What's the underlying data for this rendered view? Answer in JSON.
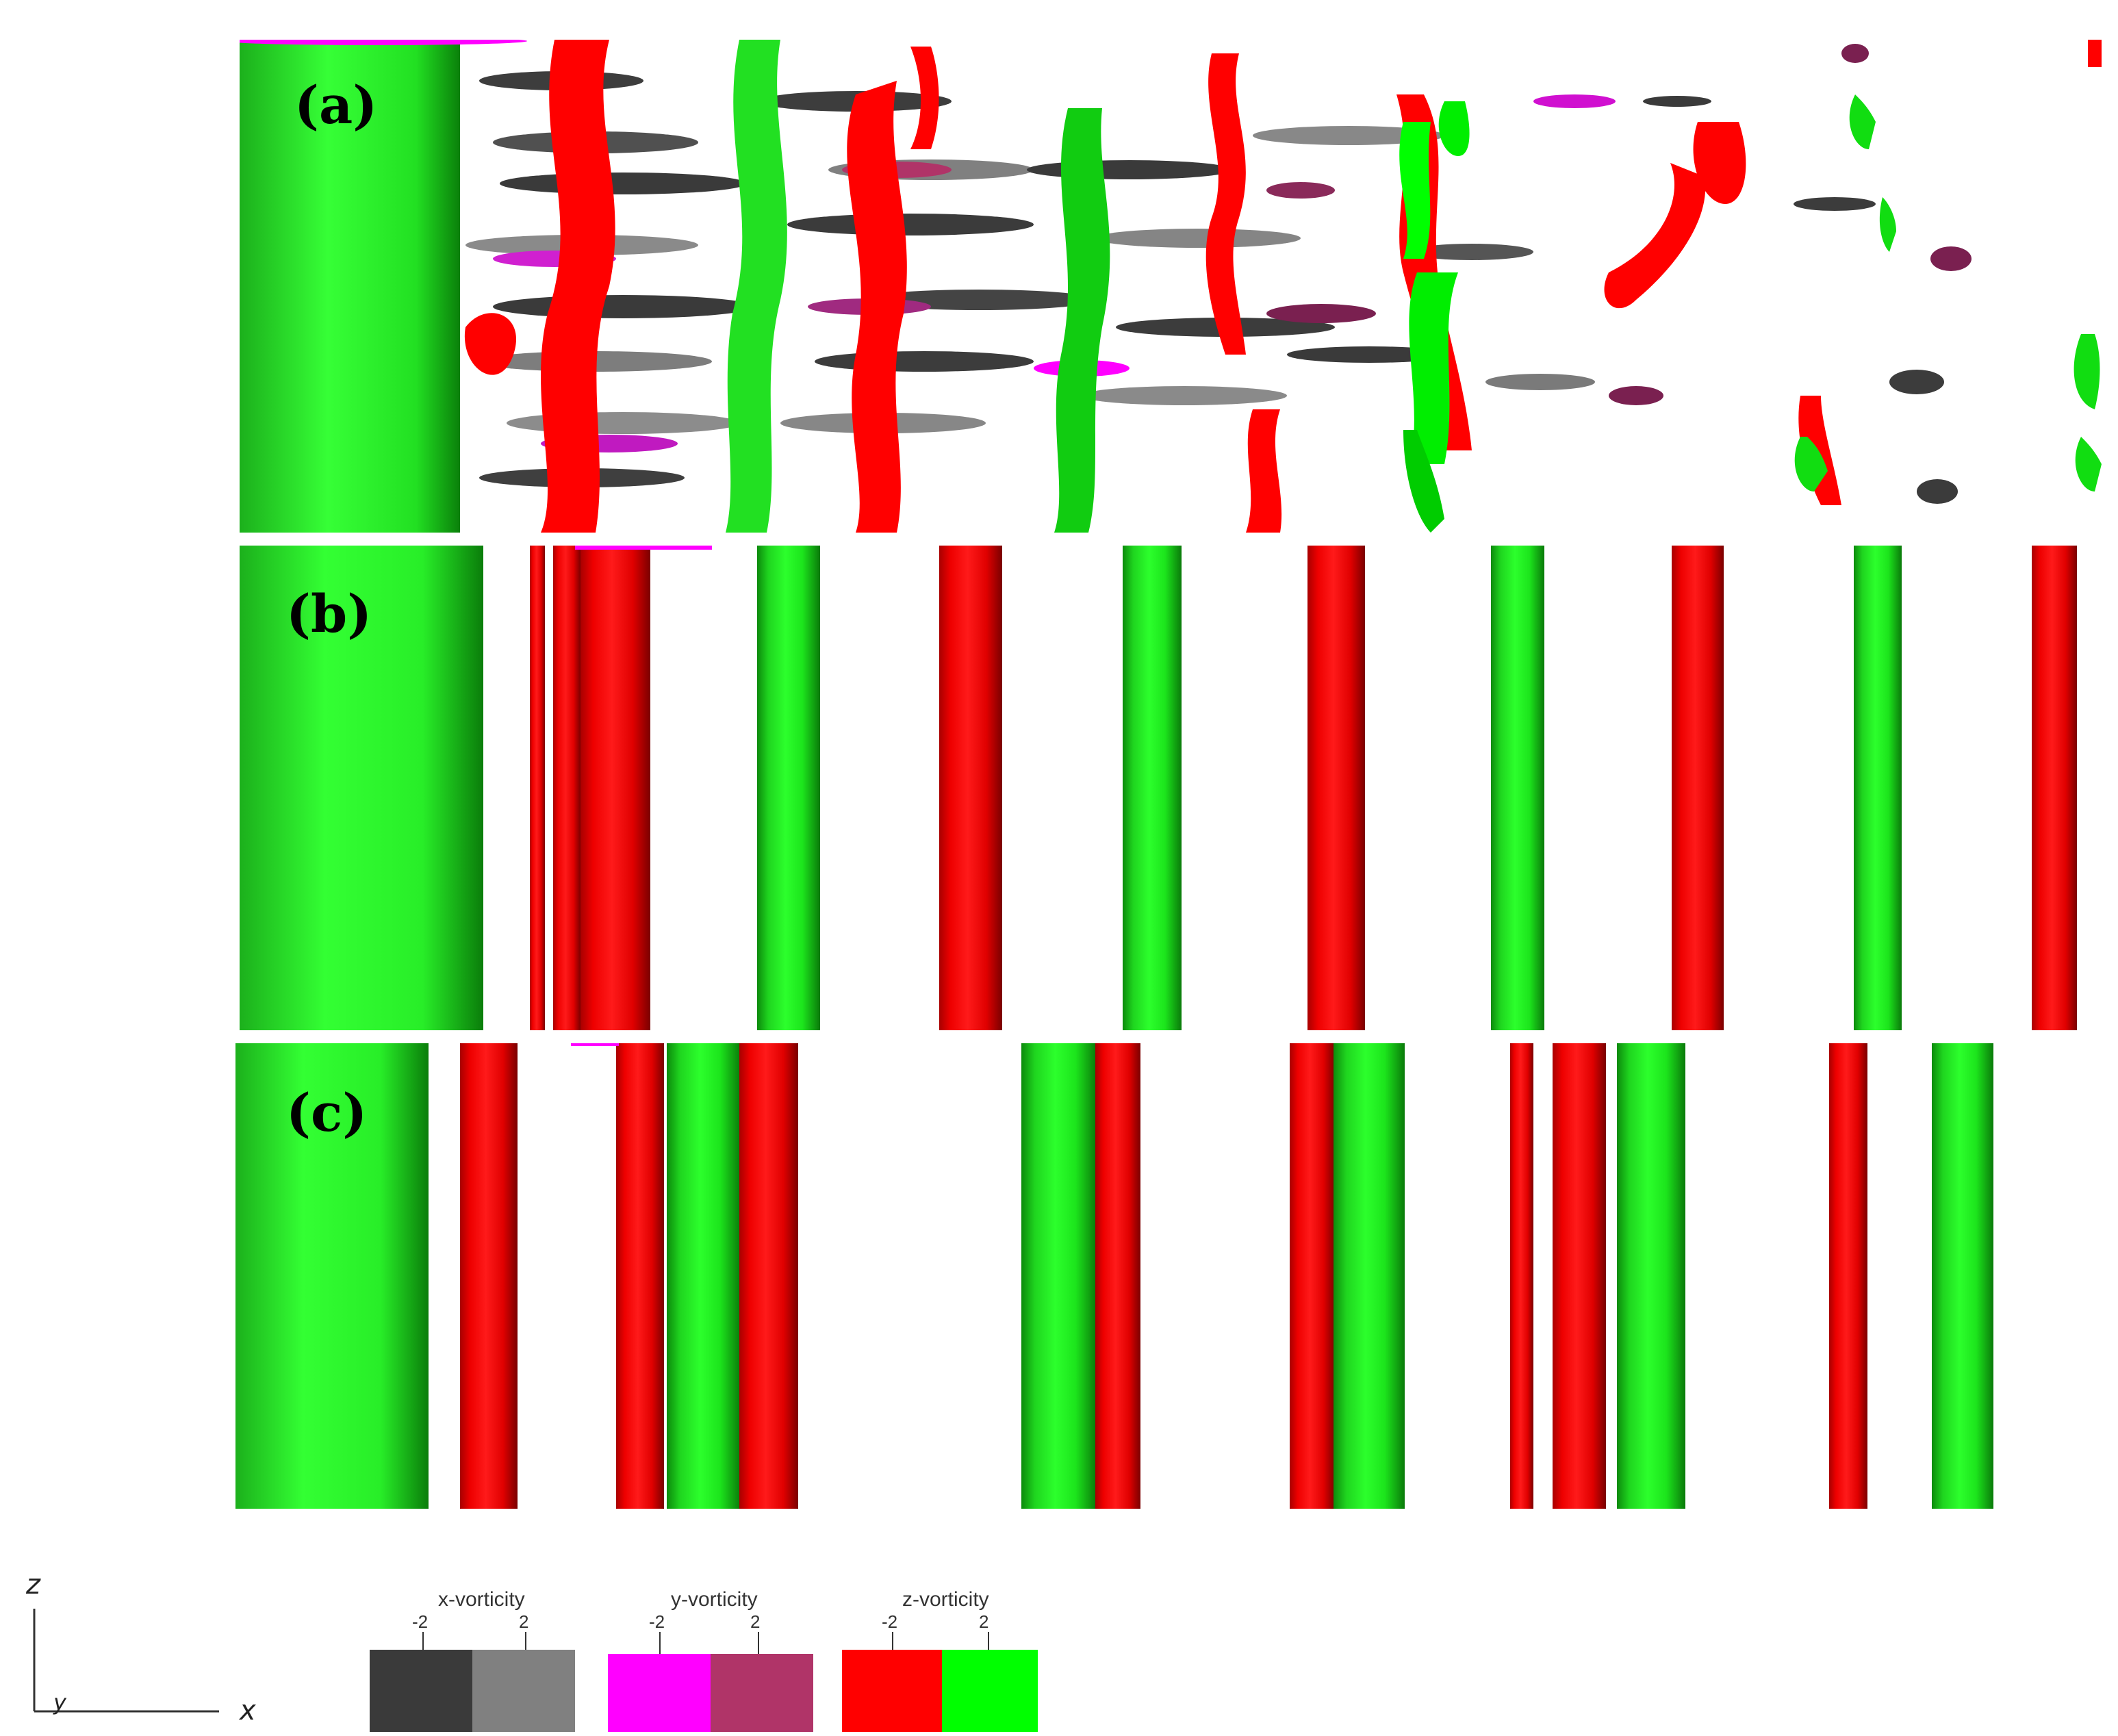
{
  "panels": [
    {
      "label": "(a)"
    },
    {
      "label": "(b)"
    },
    {
      "label": "(c)"
    }
  ],
  "axes": {
    "z": "z",
    "x": "x",
    "y": "y"
  },
  "legend": [
    {
      "title": "x-vorticity",
      "tick_neg": "-2",
      "tick_pos": "2",
      "color_neg": "#3a3a3a",
      "color_pos": "#808080"
    },
    {
      "title": "y-vorticity",
      "tick_neg": "-2",
      "tick_pos": "2",
      "color_neg": "#ff00ff",
      "color_pos": "#b03468"
    },
    {
      "title": "z-vorticity",
      "tick_neg": "-2",
      "tick_pos": "2",
      "color_neg": "#ff0000",
      "color_pos": "#00ff00"
    }
  ]
}
